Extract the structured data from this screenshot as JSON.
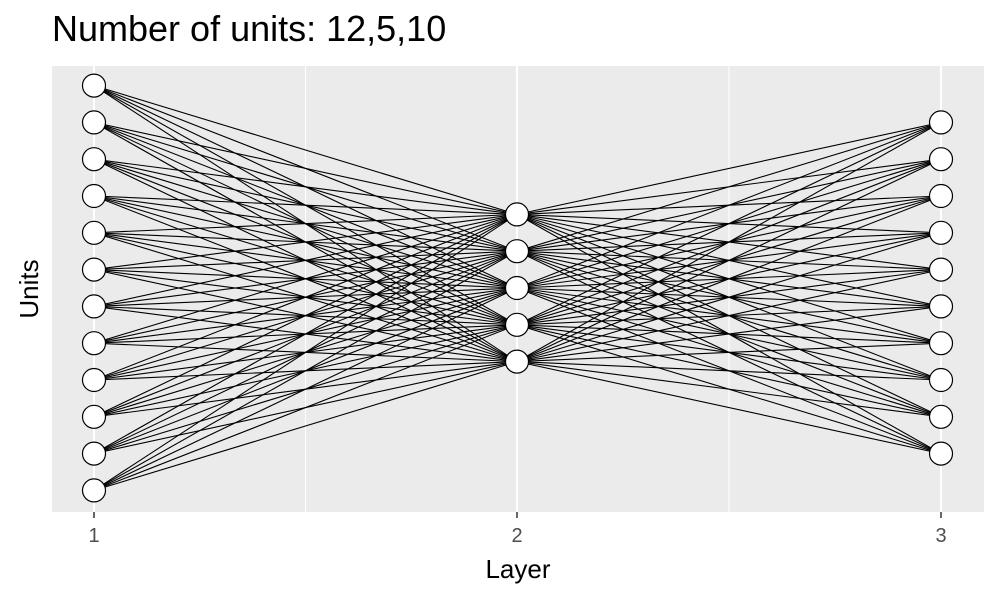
{
  "title": "Number of units: 12,5,10",
  "chart_data": {
    "type": "network",
    "title": "Number of units: 12,5,10",
    "xlabel": "Layer",
    "ylabel": "Units",
    "x_ticks": [
      "1",
      "2",
      "3"
    ],
    "layers": [
      {
        "layer": 1,
        "units": 12
      },
      {
        "layer": 2,
        "units": 5
      },
      {
        "layer": 3,
        "units": 10
      }
    ],
    "connections": "fully-connected between adjacent layers",
    "grid": true
  },
  "colors": {
    "panel_background": "#ebebeb",
    "grid": "#ffffff",
    "node_fill": "#ffffff",
    "node_stroke": "#000000",
    "edge": "#000000"
  }
}
